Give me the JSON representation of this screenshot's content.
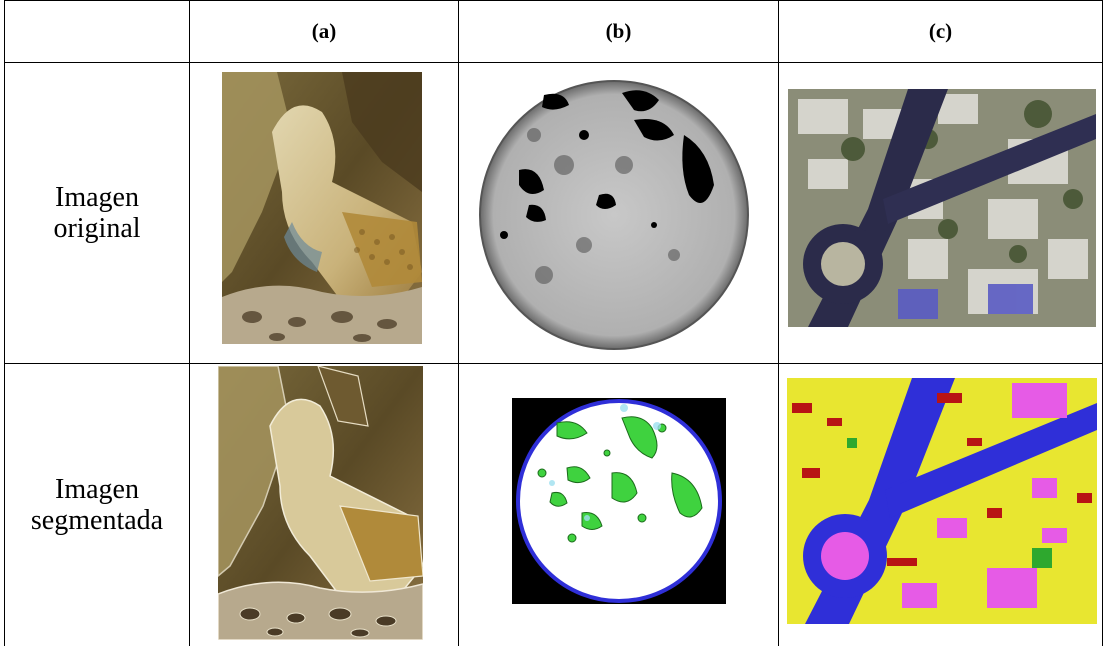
{
  "columns": {
    "a": "(a)",
    "b": "(b)",
    "c": "(c)"
  },
  "rows": {
    "original": {
      "line1": "Imagen",
      "line2": "original"
    },
    "segmented": {
      "line1": "Imagen",
      "line2": "segmentada"
    }
  },
  "images": {
    "a_original": "lizard-photo",
    "b_original": "grayscale-disc-scan",
    "c_original": "aerial-urban-roundabout",
    "a_segmented": "lizard-segmented-contours",
    "b_segmented": "disc-segmented-green-regions",
    "c_segmented": "urban-segmented-color-classes"
  },
  "colors": {
    "segment_yellow": "#e8e630",
    "segment_blue": "#2f2fd8",
    "segment_magenta": "#e65be6",
    "segment_red": "#b81414",
    "segment_green": "#2ea82e",
    "disc_green": "#3fd23f"
  }
}
